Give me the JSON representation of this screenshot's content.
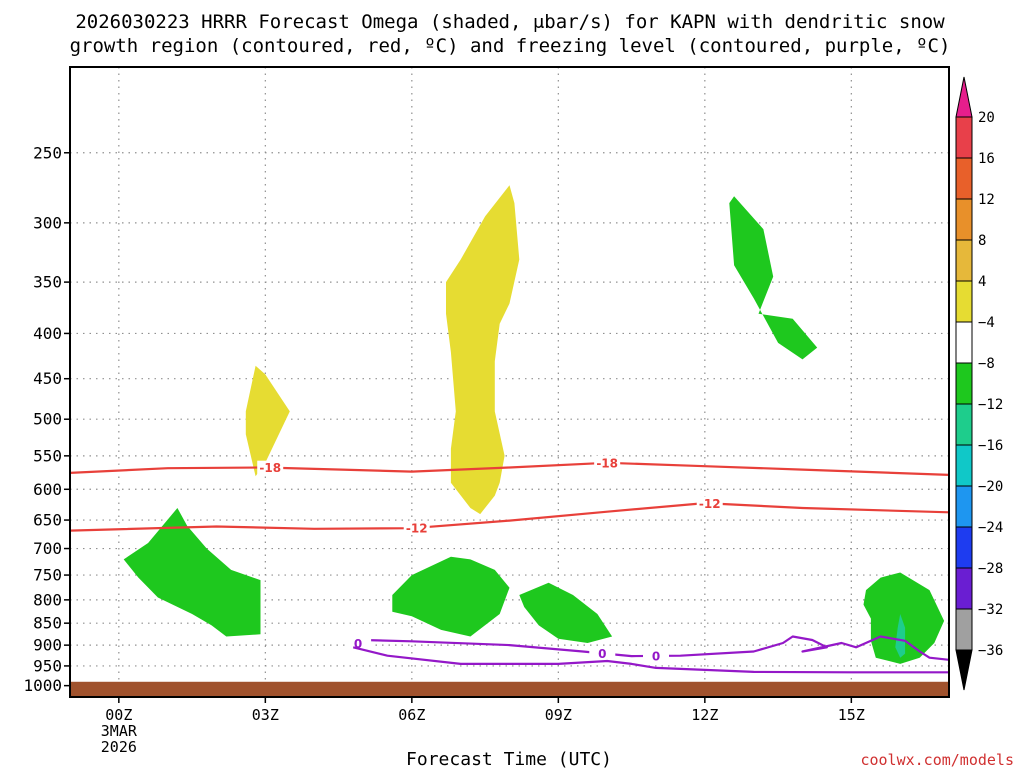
{
  "chart_data": {
    "type": "time-height",
    "title_lines": [
      "2026030223 HRRR Forecast Omega (shaded, μbar/s) for KAPN with dendritic snow",
      "growth region (contoured, red, ºC) and freezing level (contoured, purple, ºC)"
    ],
    "xlabel": "Forecast Time (UTC)",
    "xlim": [
      -1,
      17
    ],
    "x_ticks": [
      {
        "x": 0,
        "label": "00Z",
        "sub": [
          "3MAR",
          "2026"
        ]
      },
      {
        "x": 3,
        "label": "03Z",
        "sub": []
      },
      {
        "x": 6,
        "label": "06Z",
        "sub": []
      },
      {
        "x": 9,
        "label": "09Z",
        "sub": []
      },
      {
        "x": 12,
        "label": "12Z",
        "sub": []
      },
      {
        "x": 15,
        "label": "15Z",
        "sub": []
      }
    ],
    "y_scale": "log",
    "ylim": [
      1030,
      200
    ],
    "y_ticks": [
      250,
      300,
      350,
      400,
      450,
      500,
      550,
      600,
      650,
      700,
      750,
      800,
      850,
      900,
      950,
      1000
    ],
    "y_tick_labels": [
      "250",
      "300",
      "350",
      "400",
      "450",
      "500",
      "550",
      "600",
      "650",
      "700",
      "750",
      "800",
      "850",
      "900",
      "950",
      "1000"
    ],
    "grid": true,
    "ground": {
      "color": "#a0522d",
      "pressure": 990
    },
    "shaded_regions": [
      {
        "class": "4 to 8",
        "color": "#e6dc32",
        "points": [
          [
            2.6,
            490
          ],
          [
            2.8,
            435
          ],
          [
            3.0,
            445
          ],
          [
            3.5,
            490
          ],
          [
            3.0,
            560
          ],
          [
            2.8,
            580
          ],
          [
            2.6,
            520
          ]
        ]
      },
      {
        "class": "4 to 8",
        "color": "#e6dc32",
        "points": [
          [
            7.0,
            330
          ],
          [
            7.5,
            295
          ],
          [
            8.0,
            272
          ],
          [
            8.1,
            285
          ],
          [
            8.2,
            330
          ],
          [
            8.0,
            370
          ],
          [
            7.8,
            390
          ],
          [
            7.7,
            430
          ],
          [
            7.7,
            490
          ],
          [
            7.9,
            550
          ],
          [
            7.8,
            590
          ],
          [
            7.7,
            610
          ],
          [
            7.4,
            640
          ],
          [
            7.2,
            630
          ],
          [
            6.8,
            590
          ],
          [
            6.8,
            540
          ],
          [
            6.9,
            490
          ],
          [
            6.8,
            420
          ],
          [
            6.7,
            380
          ],
          [
            6.7,
            350
          ]
        ]
      },
      {
        "class": "-4 to -8",
        "color": "#1ec81e",
        "points": [
          [
            1.2,
            630
          ],
          [
            1.4,
            660
          ],
          [
            1.8,
            700
          ],
          [
            2.3,
            740
          ],
          [
            2.9,
            760
          ],
          [
            2.9,
            875
          ],
          [
            2.2,
            880
          ],
          [
            1.9,
            855
          ],
          [
            1.5,
            830
          ],
          [
            0.8,
            795
          ],
          [
            0.4,
            755
          ],
          [
            0.1,
            720
          ],
          [
            0.6,
            690
          ]
        ]
      },
      {
        "class": "-4 to -8",
        "color": "#1ec81e",
        "points": [
          [
            5.6,
            790
          ],
          [
            6.0,
            750
          ],
          [
            6.8,
            715
          ],
          [
            7.2,
            720
          ],
          [
            7.7,
            740
          ],
          [
            8.0,
            775
          ],
          [
            7.8,
            830
          ],
          [
            7.2,
            880
          ],
          [
            6.6,
            865
          ],
          [
            6.0,
            835
          ],
          [
            5.6,
            825
          ]
        ]
      },
      {
        "class": "-4 to -8",
        "color": "#1ec81e",
        "points": [
          [
            8.2,
            790
          ],
          [
            8.8,
            765
          ],
          [
            9.3,
            790
          ],
          [
            9.8,
            830
          ],
          [
            10.1,
            880
          ],
          [
            9.6,
            895
          ],
          [
            9.0,
            885
          ],
          [
            8.6,
            855
          ],
          [
            8.3,
            815
          ]
        ]
      },
      {
        "class": "-4 to -8",
        "color": "#1ec81e",
        "points": [
          [
            12.5,
            285
          ],
          [
            12.6,
            280
          ],
          [
            13.2,
            305
          ],
          [
            13.4,
            345
          ],
          [
            13.1,
            380
          ],
          [
            13.8,
            385
          ],
          [
            14.3,
            415
          ],
          [
            14.0,
            428
          ],
          [
            13.5,
            410
          ],
          [
            13.0,
            365
          ],
          [
            12.6,
            335
          ]
        ]
      },
      {
        "class": "-4 to -8",
        "color": "#1ec81e",
        "points": [
          [
            15.3,
            780
          ],
          [
            15.6,
            755
          ],
          [
            16.0,
            745
          ],
          [
            16.6,
            780
          ],
          [
            16.9,
            845
          ],
          [
            16.7,
            895
          ],
          [
            16.4,
            930
          ],
          [
            16.0,
            945
          ],
          [
            15.5,
            930
          ],
          [
            15.4,
            890
          ],
          [
            15.4,
            840
          ],
          [
            15.25,
            810
          ]
        ]
      },
      {
        "class": "-8 to -12",
        "color": "#1ecd8c",
        "points": [
          [
            16.0,
            830
          ],
          [
            16.1,
            860
          ],
          [
            16.1,
            920
          ],
          [
            16.0,
            930
          ],
          [
            15.9,
            905
          ],
          [
            15.95,
            860
          ]
        ]
      }
    ],
    "contours": [
      {
        "name": "-18",
        "color": "#e8403a",
        "label_at": [
          3.1,
          10.0
        ],
        "points": [
          [
            -1,
            575
          ],
          [
            1,
            568
          ],
          [
            3,
            567
          ],
          [
            6,
            573
          ],
          [
            8,
            567
          ],
          [
            10,
            560
          ],
          [
            12,
            565
          ],
          [
            14,
            570
          ],
          [
            17,
            578
          ]
        ]
      },
      {
        "name": "-12",
        "color": "#e8403a",
        "label_at": [
          6.1,
          12.1
        ],
        "points": [
          [
            -1,
            668
          ],
          [
            2,
            661
          ],
          [
            4,
            665
          ],
          [
            6,
            664
          ],
          [
            8,
            651
          ],
          [
            10,
            636
          ],
          [
            12,
            622
          ],
          [
            14,
            630
          ],
          [
            17,
            637
          ]
        ]
      },
      {
        "name": "0",
        "color": "#9418c8",
        "label_at": [
          4.9,
          9.9,
          11.0
        ],
        "points": [
          [
            4.8,
            905
          ],
          [
            5.0,
            888
          ],
          [
            6.0,
            891
          ],
          [
            8.0,
            900
          ],
          [
            9.5,
            915
          ],
          [
            10.5,
            926
          ],
          [
            11.5,
            925
          ],
          [
            13.0,
            915
          ],
          [
            13.6,
            895
          ],
          [
            13.8,
            880
          ],
          [
            14.2,
            888
          ],
          [
            14.5,
            905
          ],
          [
            14.0,
            915
          ],
          [
            14.8,
            895
          ],
          [
            15.1,
            905
          ],
          [
            15.6,
            880
          ],
          [
            16.1,
            890
          ],
          [
            16.4,
            915
          ],
          [
            16.6,
            930
          ],
          [
            17,
            935
          ]
        ]
      },
      {
        "name": "0",
        "color": "#9418c8",
        "label_at": [],
        "points": [
          [
            4.8,
            905
          ],
          [
            5.5,
            925
          ],
          [
            7.0,
            945
          ],
          [
            9.0,
            945
          ],
          [
            10.0,
            938
          ],
          [
            10.5,
            945
          ],
          [
            11.0,
            955
          ],
          [
            13.0,
            965
          ],
          [
            15.0,
            966
          ],
          [
            17,
            966
          ]
        ]
      }
    ],
    "colorbar": {
      "labels": [
        "20",
        "16",
        "12",
        "8",
        "4",
        "−4",
        "−8",
        "−12",
        "−16",
        "−20",
        "−24",
        "−28",
        "−32",
        "−36"
      ],
      "colors": [
        "#e8404a",
        "#e8602a",
        "#e8902a",
        "#e6b83a",
        "#e6dc32",
        "#ffffff",
        "#1ec81e",
        "#1ecd8c",
        "#10c8c8",
        "#1e96f0",
        "#1e3cf0",
        "#6a1ed2",
        "#a81ec8",
        "#a0a0a0"
      ],
      "top_color": "#e61e8c",
      "bottom_color": "#000000"
    },
    "credit": "coolwx.com/models"
  }
}
